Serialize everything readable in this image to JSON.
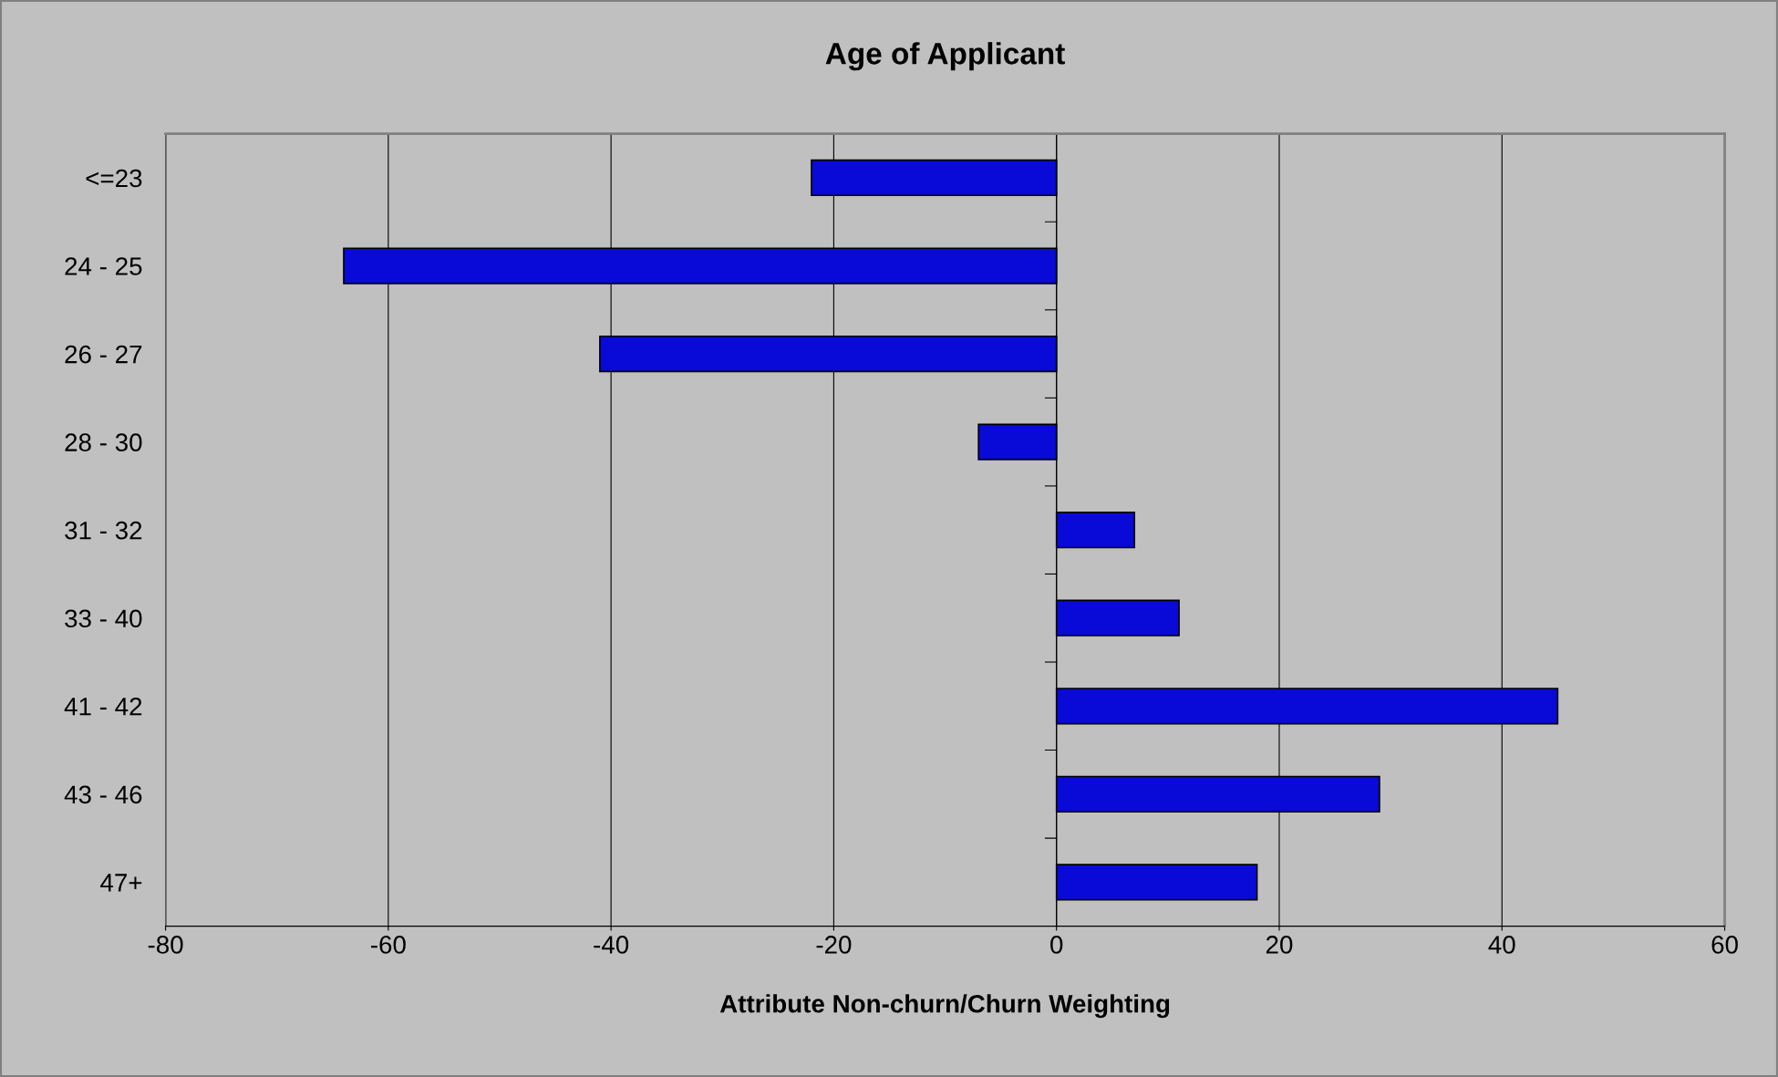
{
  "chart_data": {
    "type": "bar",
    "orientation": "horizontal",
    "title": "Age of Applicant",
    "xlabel": "Attribute Non-churn/Churn Weighting",
    "categories": [
      "<=23",
      "24 - 25",
      "26 - 27",
      "28 - 30",
      "31 - 32",
      "33 - 40",
      "41 - 42",
      "43 - 46",
      "47+"
    ],
    "values": [
      -22,
      -64,
      -41,
      -7,
      7,
      11,
      45,
      29,
      18
    ],
    "color": "#0a0ad8",
    "xlim": [
      -80,
      60
    ],
    "xticks": [
      -80,
      -60,
      -40,
      -20,
      0,
      20,
      40,
      60
    ],
    "grid": "x",
    "legend": false
  }
}
